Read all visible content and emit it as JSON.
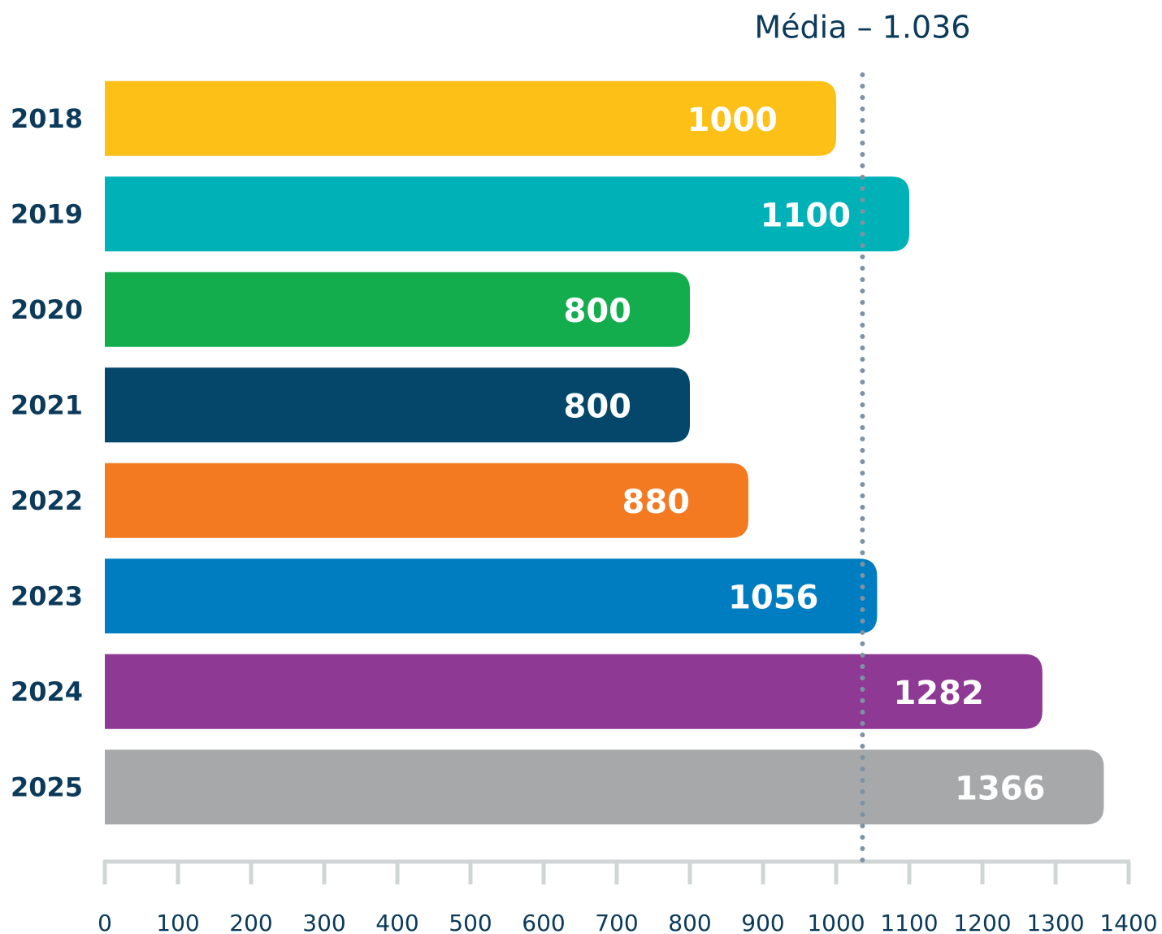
{
  "chart_data": {
    "type": "bar",
    "orientation": "horizontal",
    "categories": [
      "2018",
      "2019",
      "2020",
      "2021",
      "2022",
      "2023",
      "2024",
      "2025"
    ],
    "values": [
      1000,
      1100,
      800,
      800,
      880,
      1056,
      1282,
      1366
    ],
    "colors": [
      "#fdc016",
      "#00b2b8",
      "#13ad4e",
      "#04476a",
      "#f47a22",
      "#007dc0",
      "#8e3994",
      "#a7a8aa"
    ],
    "xlim": [
      0,
      1400
    ],
    "xticks": [
      0,
      100,
      200,
      300,
      400,
      500,
      600,
      700,
      800,
      900,
      1000,
      1100,
      1200,
      1300,
      1400
    ],
    "mean": {
      "value": 1036,
      "label": "Média – 1.036"
    }
  }
}
